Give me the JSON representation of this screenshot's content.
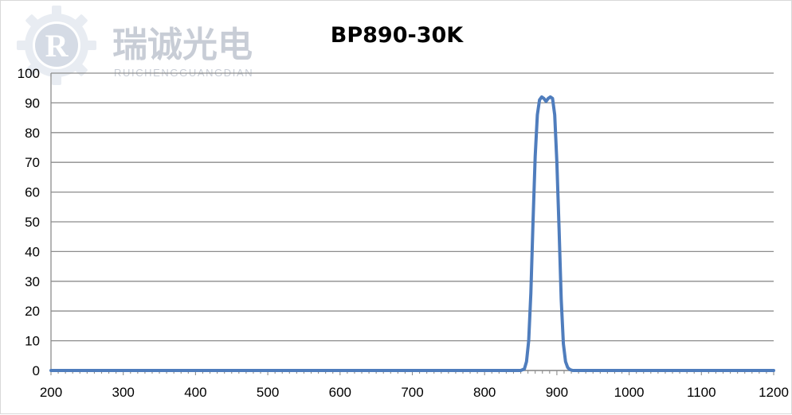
{
  "watermark": {
    "icon": "gear-r-logo",
    "letter": "R",
    "name_cn": "瑞诚光电",
    "name_en": "RUICHENGGUANGDIAN",
    "color": "#c8cdd6"
  },
  "chart_data": {
    "type": "line",
    "title": "BP890-30K",
    "xlabel": "",
    "ylabel": "",
    "xlim": [
      200,
      1200
    ],
    "ylim": [
      0,
      100
    ],
    "xticks": [
      200,
      300,
      400,
      500,
      600,
      700,
      800,
      900,
      1000,
      1100,
      1200
    ],
    "yticks": [
      0,
      10,
      20,
      30,
      40,
      50,
      60,
      70,
      80,
      90,
      100
    ],
    "grid": "horizontal",
    "legend": "none",
    "series": [
      {
        "color": "#4f7dbd",
        "x": [
          200,
          850,
          855,
          858,
          861,
          864,
          867,
          870,
          873,
          876,
          879,
          882,
          885,
          888,
          891,
          894,
          897,
          900,
          903,
          906,
          909,
          912,
          915,
          918,
          922,
          1200
        ],
        "y": [
          0,
          0,
          0.5,
          3,
          10,
          26,
          50,
          72,
          86,
          91,
          92,
          91.5,
          90.5,
          91.5,
          92,
          91.5,
          86,
          70,
          48,
          24,
          9,
          3,
          1,
          0.3,
          0,
          0
        ]
      }
    ]
  }
}
